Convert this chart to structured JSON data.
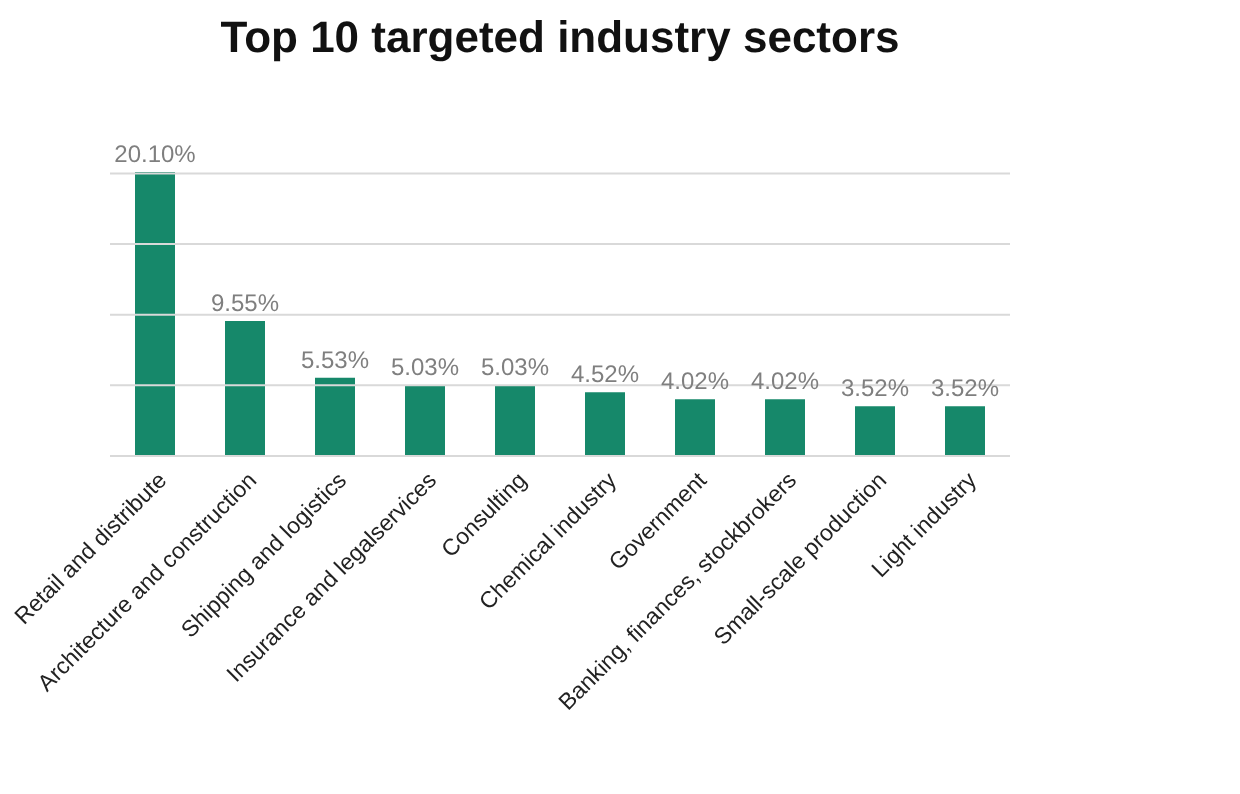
{
  "chart_data": {
    "type": "bar",
    "title": "Top 10 targeted industry sectors",
    "categories": [
      "Retail and distribute",
      "Architecture and construction",
      "Shipping and logistics",
      "Insurance and legalservices",
      "Consulting",
      "Chemical industry",
      "Government",
      "Banking, finances, stockbrokers",
      "Small-scale production",
      "Light industry"
    ],
    "values": [
      20.1,
      9.55,
      5.53,
      5.03,
      5.03,
      4.52,
      4.02,
      4.02,
      3.52,
      3.52
    ],
    "value_labels": [
      "20.10%",
      "9.55%",
      "5.53%",
      "5.03%",
      "5.03%",
      "4.52%",
      "4.02%",
      "4.02%",
      "3.52%",
      "3.52%"
    ],
    "color": "#16886a",
    "ylim": [
      0,
      20.1
    ],
    "yticks": [
      {
        "value": 0,
        "label": null
      },
      {
        "value": 5,
        "label": null
      },
      {
        "value": 10,
        "label": null
      },
      {
        "value": 15,
        "label": null
      },
      {
        "value": 20,
        "label": null
      }
    ],
    "grid": "y",
    "tick_labels": "x"
  }
}
